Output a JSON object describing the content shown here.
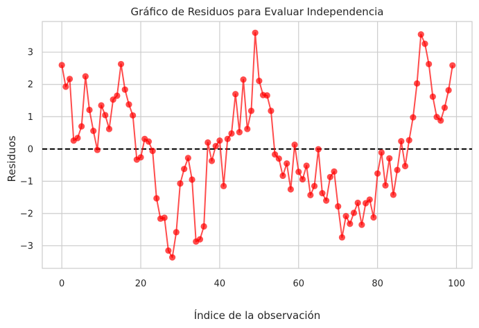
{
  "chart_data": {
    "type": "line",
    "title": "Gráfico de Residuos para Evaluar Independencia",
    "xlabel": "Índice de la observación",
    "ylabel": "Residuos",
    "xlim": [
      -4.95,
      103.95
    ],
    "ylim": [
      -3.7,
      3.95
    ],
    "xticks": [
      0,
      20,
      40,
      60,
      80,
      100
    ],
    "yticks": [
      -3,
      -2,
      -1,
      0,
      1,
      2,
      3
    ],
    "grid": true,
    "line_color": "#ff0000",
    "reference_line": {
      "y": 0,
      "style": "dashed",
      "color": "#000000"
    },
    "series": [
      {
        "x": [
          0,
          1,
          2,
          3,
          4,
          5,
          6,
          7,
          8,
          9,
          10,
          11,
          12,
          13,
          14,
          15,
          16,
          17,
          18,
          19,
          20,
          21,
          22,
          23,
          24,
          25,
          26,
          27,
          28,
          29,
          30,
          31,
          32,
          33,
          34,
          35,
          36,
          37,
          38,
          39,
          40,
          41,
          42,
          43,
          44,
          45,
          46,
          47,
          48,
          49,
          50,
          51,
          52,
          53,
          54,
          55,
          56,
          57,
          58,
          59,
          60,
          61,
          62,
          63,
          64,
          65,
          66,
          67,
          68,
          69,
          70,
          71,
          72,
          73,
          74,
          75,
          76,
          77,
          78,
          79,
          80,
          81,
          82,
          83,
          84,
          85,
          86,
          87,
          88,
          89,
          90,
          91,
          92,
          93,
          94,
          95,
          96,
          97,
          98,
          99
        ],
        "values": [
          2.6,
          1.93,
          2.17,
          0.26,
          0.34,
          0.7,
          2.25,
          1.21,
          0.56,
          -0.03,
          1.35,
          1.05,
          0.62,
          1.53,
          1.65,
          2.63,
          1.84,
          1.38,
          1.04,
          -0.33,
          -0.26,
          0.31,
          0.23,
          -0.06,
          -1.53,
          -2.16,
          -2.13,
          -3.15,
          -3.36,
          -2.58,
          -1.07,
          -0.62,
          -0.28,
          -0.95,
          -2.87,
          -2.8,
          -2.4,
          0.2,
          -0.37,
          0.09,
          0.26,
          -1.15,
          0.31,
          0.48,
          1.7,
          0.52,
          2.15,
          0.62,
          1.18,
          3.6,
          2.11,
          1.67,
          1.66,
          1.18,
          -0.17,
          -0.3,
          -0.83,
          -0.45,
          -1.25,
          0.13,
          -0.71,
          -0.94,
          -0.52,
          -1.43,
          -1.15,
          -0.01,
          -1.37,
          -1.6,
          -0.87,
          -0.7,
          -1.78,
          -2.74,
          -2.08,
          -2.32,
          -1.98,
          -1.67,
          -2.35,
          -1.68,
          -1.57,
          -2.12,
          -0.76,
          -0.11,
          -1.13,
          -0.29,
          -1.42,
          -0.65,
          0.24,
          -0.53,
          0.27,
          0.98,
          2.03,
          3.55,
          3.26,
          2.63,
          1.62,
          0.99,
          0.88,
          1.28,
          1.82,
          2.59
        ]
      }
    ]
  }
}
